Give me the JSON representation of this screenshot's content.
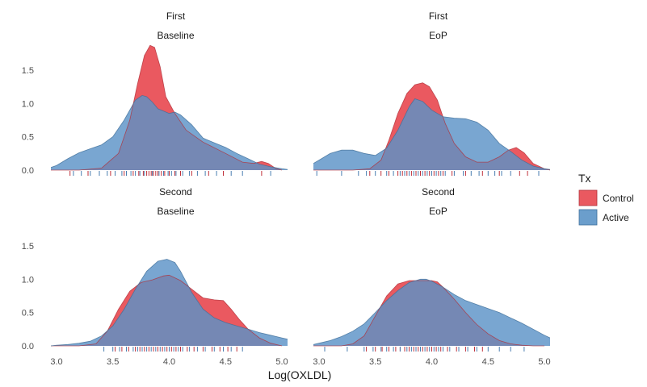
{
  "chart_data": {
    "type": "area",
    "title": "",
    "xlabel": "Log(OXLDL)",
    "ylabel": "",
    "xlim": [
      2.95,
      5.05
    ],
    "ylim": [
      0,
      1.85
    ],
    "x_ticks": [
      3.0,
      3.5,
      4.0,
      4.5,
      5.0
    ],
    "x_tick_labels": [
      "3.0",
      "3.5",
      "4.0",
      "4.5",
      "5.0"
    ],
    "y_ticks": [
      0.0,
      0.5,
      1.0,
      1.5
    ],
    "y_tick_labels": [
      "0.0",
      "0.5",
      "1.0",
      "1.5"
    ],
    "grid": false,
    "legend": {
      "title": "Tx",
      "position": "right",
      "entries": [
        {
          "name": "Control",
          "color": "#E8474F"
        },
        {
          "name": "Active",
          "color": "#5B93C7"
        }
      ]
    },
    "colors": {
      "Control": "#E8474F",
      "Active": "#5B93C7",
      "overlap": "#6E6F98"
    },
    "panels": [
      {
        "strip_top": "First",
        "strip_bottom": "Baseline",
        "series": [
          {
            "name": "Control",
            "x": [
              2.95,
              3.2,
              3.4,
              3.55,
              3.65,
              3.72,
              3.78,
              3.83,
              3.87,
              3.92,
              3.97,
              4.05,
              4.15,
              4.3,
              4.5,
              4.65,
              4.75,
              4.82,
              4.88,
              4.95,
              5.0
            ],
            "y": [
              0,
              0,
              0.03,
              0.25,
              0.75,
              1.3,
              1.72,
              1.87,
              1.84,
              1.55,
              1.1,
              0.85,
              0.6,
              0.42,
              0.25,
              0.12,
              0.1,
              0.13,
              0.1,
              0.02,
              0
            ]
          },
          {
            "name": "Active",
            "x": [
              2.95,
              3.0,
              3.1,
              3.2,
              3.3,
              3.4,
              3.5,
              3.6,
              3.7,
              3.76,
              3.8,
              3.85,
              3.9,
              4.0,
              4.05,
              4.1,
              4.2,
              4.3,
              4.4,
              4.5,
              4.6,
              4.7,
              4.8,
              4.9,
              5.0,
              5.05
            ],
            "y": [
              0.04,
              0.07,
              0.17,
              0.26,
              0.32,
              0.38,
              0.5,
              0.75,
              1.05,
              1.12,
              1.1,
              1.02,
              0.92,
              0.85,
              0.87,
              0.83,
              0.68,
              0.48,
              0.41,
              0.34,
              0.25,
              0.17,
              0.09,
              0.05,
              0.02,
              0.01
            ]
          }
        ],
        "rug": {
          "Control": [
            3.12,
            3.28,
            3.48,
            3.6,
            3.68,
            3.73,
            3.77,
            3.8,
            3.82,
            3.84,
            3.86,
            3.88,
            3.9,
            3.93,
            3.96,
            4.0,
            4.05,
            4.1,
            4.2,
            4.35,
            4.48,
            4.82
          ],
          "Active": [
            3.15,
            3.22,
            3.3,
            3.38,
            3.45,
            3.52,
            3.58,
            3.62,
            3.66,
            3.7,
            3.74,
            3.78,
            3.85,
            3.91,
            3.95,
            3.99,
            4.02,
            4.06,
            4.12,
            4.18,
            4.25,
            4.32,
            4.42,
            4.55,
            4.65,
            4.9
          ]
        }
      },
      {
        "strip_top": "First",
        "strip_bottom": "EoP",
        "series": [
          {
            "name": "Control",
            "x": [
              2.95,
              3.3,
              3.45,
              3.55,
              3.62,
              3.7,
              3.78,
              3.85,
              3.92,
              3.98,
              4.05,
              4.12,
              4.2,
              4.3,
              4.4,
              4.5,
              4.6,
              4.68,
              4.75,
              4.82,
              4.9,
              5.0,
              5.05
            ],
            "y": [
              0,
              0,
              0.02,
              0.15,
              0.45,
              0.85,
              1.15,
              1.28,
              1.31,
              1.25,
              1.05,
              0.7,
              0.4,
              0.2,
              0.12,
              0.12,
              0.2,
              0.3,
              0.34,
              0.26,
              0.1,
              0.02,
              0
            ]
          },
          {
            "name": "Active",
            "x": [
              2.95,
              3.0,
              3.1,
              3.2,
              3.3,
              3.4,
              3.5,
              3.6,
              3.7,
              3.8,
              3.85,
              3.92,
              4.0,
              4.1,
              4.2,
              4.3,
              4.4,
              4.5,
              4.6,
              4.7,
              4.8,
              4.9,
              5.0,
              5.05
            ],
            "y": [
              0.1,
              0.15,
              0.25,
              0.3,
              0.3,
              0.25,
              0.22,
              0.33,
              0.6,
              0.95,
              1.07,
              1.03,
              0.9,
              0.8,
              0.78,
              0.77,
              0.72,
              0.6,
              0.4,
              0.28,
              0.15,
              0.06,
              0.02,
              0.01
            ]
          }
        ],
        "rug": {
          "Control": [
            3.45,
            3.55,
            3.62,
            3.7,
            3.74,
            3.78,
            3.82,
            3.86,
            3.9,
            3.94,
            3.98,
            4.02,
            4.06,
            4.1,
            4.18,
            4.3,
            4.45,
            4.6,
            4.78,
            4.85
          ],
          "Active": [
            2.98,
            3.2,
            3.35,
            3.42,
            3.5,
            3.6,
            3.66,
            3.72,
            3.76,
            3.8,
            3.84,
            3.88,
            3.92,
            3.96,
            4.0,
            4.04,
            4.08,
            4.12,
            4.2,
            4.28,
            4.35,
            4.42,
            4.5,
            4.56,
            4.62,
            4.7,
            4.95
          ]
        }
      },
      {
        "strip_top": "Second",
        "strip_bottom": "Baseline",
        "series": [
          {
            "name": "Control",
            "x": [
              2.95,
              3.2,
              3.35,
              3.45,
              3.55,
              3.65,
              3.75,
              3.85,
              3.95,
              4.0,
              4.1,
              4.2,
              4.3,
              4.4,
              4.48,
              4.55,
              4.62,
              4.7,
              4.8,
              4.9,
              5.0
            ],
            "y": [
              0,
              0,
              0.03,
              0.22,
              0.55,
              0.82,
              0.95,
              0.99,
              1.05,
              1.06,
              0.98,
              0.85,
              0.72,
              0.69,
              0.68,
              0.55,
              0.4,
              0.25,
              0.12,
              0.04,
              0
            ]
          },
          {
            "name": "Active",
            "x": [
              2.95,
              3.0,
              3.1,
              3.2,
              3.3,
              3.4,
              3.5,
              3.6,
              3.7,
              3.8,
              3.9,
              3.98,
              4.05,
              4.1,
              4.2,
              4.3,
              4.4,
              4.5,
              4.6,
              4.7,
              4.8,
              4.9,
              5.0,
              5.05
            ],
            "y": [
              0,
              0.01,
              0.02,
              0.04,
              0.07,
              0.15,
              0.3,
              0.55,
              0.85,
              1.12,
              1.27,
              1.3,
              1.25,
              1.12,
              0.8,
              0.55,
              0.42,
              0.35,
              0.3,
              0.25,
              0.2,
              0.16,
              0.12,
              0.1
            ]
          }
        ],
        "rug": {
          "Control": [
            3.52,
            3.58,
            3.64,
            3.7,
            3.74,
            3.78,
            3.82,
            3.86,
            3.9,
            3.94,
            3.98,
            4.02,
            4.06,
            4.1,
            4.16,
            4.22,
            4.3,
            4.38,
            4.45,
            4.52,
            4.6
          ],
          "Active": [
            3.42,
            3.5,
            3.56,
            3.62,
            3.68,
            3.72,
            3.76,
            3.8,
            3.84,
            3.88,
            3.92,
            3.96,
            4.0,
            4.04,
            4.08,
            4.12,
            4.18,
            4.25,
            4.32,
            4.4,
            4.48,
            4.55,
            4.65
          ]
        }
      },
      {
        "strip_top": "Second",
        "strip_bottom": "EoP",
        "series": [
          {
            "name": "Control",
            "x": [
              2.95,
              3.2,
              3.3,
              3.4,
              3.5,
              3.6,
              3.7,
              3.8,
              3.9,
              4.0,
              4.05,
              4.1,
              4.2,
              4.3,
              4.4,
              4.5,
              4.6,
              4.7,
              4.8,
              4.9,
              5.0
            ],
            "y": [
              0,
              0,
              0.03,
              0.15,
              0.45,
              0.75,
              0.93,
              0.98,
              0.98,
              0.98,
              0.96,
              0.88,
              0.7,
              0.5,
              0.32,
              0.18,
              0.08,
              0.03,
              0.01,
              0,
              0
            ]
          },
          {
            "name": "Active",
            "x": [
              2.95,
              3.0,
              3.1,
              3.2,
              3.3,
              3.4,
              3.5,
              3.6,
              3.7,
              3.8,
              3.9,
              3.95,
              4.0,
              4.1,
              4.2,
              4.3,
              4.4,
              4.5,
              4.6,
              4.7,
              4.8,
              4.9,
              5.0,
              5.05
            ],
            "y": [
              0.02,
              0.04,
              0.08,
              0.14,
              0.22,
              0.33,
              0.5,
              0.68,
              0.83,
              0.95,
              1.0,
              1.0,
              0.97,
              0.88,
              0.77,
              0.68,
              0.62,
              0.56,
              0.5,
              0.42,
              0.34,
              0.25,
              0.16,
              0.12
            ]
          }
        ],
        "rug": {
          "Control": [
            3.42,
            3.5,
            3.56,
            3.62,
            3.68,
            3.72,
            3.76,
            3.8,
            3.84,
            3.88,
            3.92,
            3.96,
            4.0,
            4.04,
            4.08,
            4.14,
            4.22,
            4.3,
            4.38,
            4.45
          ],
          "Active": [
            3.05,
            3.25,
            3.4,
            3.48,
            3.55,
            3.6,
            3.66,
            3.72,
            3.78,
            3.82,
            3.86,
            3.9,
            3.94,
            3.98,
            4.02,
            4.06,
            4.1,
            4.16,
            4.24,
            4.32,
            4.4,
            4.5,
            4.6,
            4.7,
            4.82
          ]
        }
      }
    ]
  }
}
